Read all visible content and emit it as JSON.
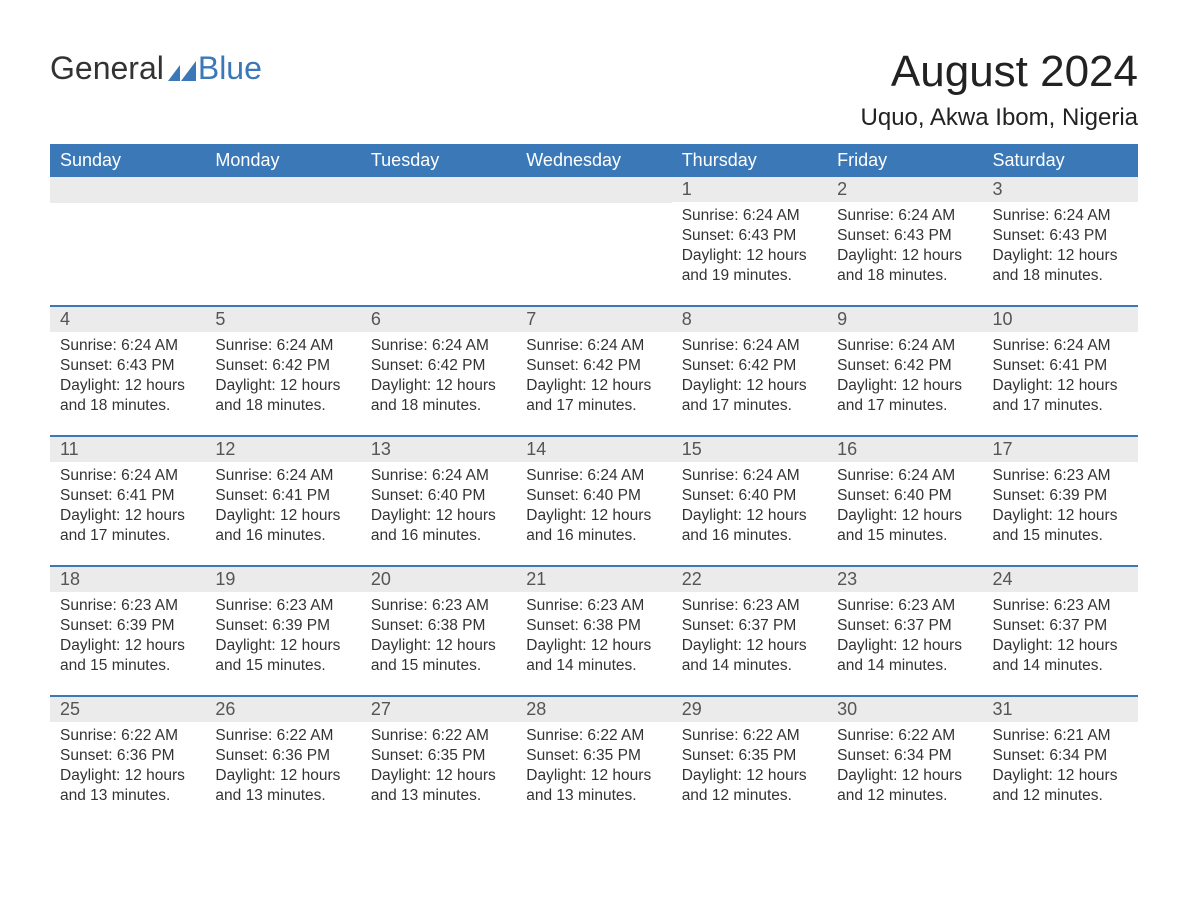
{
  "logo": {
    "text1": "General",
    "text2": "Blue"
  },
  "title": "August 2024",
  "location": "Uquo, Akwa Ibom, Nigeria",
  "colors": {
    "header_bg": "#3a78b8",
    "header_text": "#ffffff",
    "daynum_bg": "#ebebeb",
    "daynum_text": "#555555",
    "body_text": "#333333",
    "row_border": "#3a78b8",
    "page_bg": "#ffffff",
    "logo_blue": "#3a78b8"
  },
  "day_names": [
    "Sunday",
    "Monday",
    "Tuesday",
    "Wednesday",
    "Thursday",
    "Friday",
    "Saturday"
  ],
  "weeks": [
    [
      null,
      null,
      null,
      null,
      {
        "n": "1",
        "sunrise": "6:24 AM",
        "sunset": "6:43 PM",
        "daylight": "12 hours and 19 minutes."
      },
      {
        "n": "2",
        "sunrise": "6:24 AM",
        "sunset": "6:43 PM",
        "daylight": "12 hours and 18 minutes."
      },
      {
        "n": "3",
        "sunrise": "6:24 AM",
        "sunset": "6:43 PM",
        "daylight": "12 hours and 18 minutes."
      }
    ],
    [
      {
        "n": "4",
        "sunrise": "6:24 AM",
        "sunset": "6:43 PM",
        "daylight": "12 hours and 18 minutes."
      },
      {
        "n": "5",
        "sunrise": "6:24 AM",
        "sunset": "6:42 PM",
        "daylight": "12 hours and 18 minutes."
      },
      {
        "n": "6",
        "sunrise": "6:24 AM",
        "sunset": "6:42 PM",
        "daylight": "12 hours and 18 minutes."
      },
      {
        "n": "7",
        "sunrise": "6:24 AM",
        "sunset": "6:42 PM",
        "daylight": "12 hours and 17 minutes."
      },
      {
        "n": "8",
        "sunrise": "6:24 AM",
        "sunset": "6:42 PM",
        "daylight": "12 hours and 17 minutes."
      },
      {
        "n": "9",
        "sunrise": "6:24 AM",
        "sunset": "6:42 PM",
        "daylight": "12 hours and 17 minutes."
      },
      {
        "n": "10",
        "sunrise": "6:24 AM",
        "sunset": "6:41 PM",
        "daylight": "12 hours and 17 minutes."
      }
    ],
    [
      {
        "n": "11",
        "sunrise": "6:24 AM",
        "sunset": "6:41 PM",
        "daylight": "12 hours and 17 minutes."
      },
      {
        "n": "12",
        "sunrise": "6:24 AM",
        "sunset": "6:41 PM",
        "daylight": "12 hours and 16 minutes."
      },
      {
        "n": "13",
        "sunrise": "6:24 AM",
        "sunset": "6:40 PM",
        "daylight": "12 hours and 16 minutes."
      },
      {
        "n": "14",
        "sunrise": "6:24 AM",
        "sunset": "6:40 PM",
        "daylight": "12 hours and 16 minutes."
      },
      {
        "n": "15",
        "sunrise": "6:24 AM",
        "sunset": "6:40 PM",
        "daylight": "12 hours and 16 minutes."
      },
      {
        "n": "16",
        "sunrise": "6:24 AM",
        "sunset": "6:40 PM",
        "daylight": "12 hours and 15 minutes."
      },
      {
        "n": "17",
        "sunrise": "6:23 AM",
        "sunset": "6:39 PM",
        "daylight": "12 hours and 15 minutes."
      }
    ],
    [
      {
        "n": "18",
        "sunrise": "6:23 AM",
        "sunset": "6:39 PM",
        "daylight": "12 hours and 15 minutes."
      },
      {
        "n": "19",
        "sunrise": "6:23 AM",
        "sunset": "6:39 PM",
        "daylight": "12 hours and 15 minutes."
      },
      {
        "n": "20",
        "sunrise": "6:23 AM",
        "sunset": "6:38 PM",
        "daylight": "12 hours and 15 minutes."
      },
      {
        "n": "21",
        "sunrise": "6:23 AM",
        "sunset": "6:38 PM",
        "daylight": "12 hours and 14 minutes."
      },
      {
        "n": "22",
        "sunrise": "6:23 AM",
        "sunset": "6:37 PM",
        "daylight": "12 hours and 14 minutes."
      },
      {
        "n": "23",
        "sunrise": "6:23 AM",
        "sunset": "6:37 PM",
        "daylight": "12 hours and 14 minutes."
      },
      {
        "n": "24",
        "sunrise": "6:23 AM",
        "sunset": "6:37 PM",
        "daylight": "12 hours and 14 minutes."
      }
    ],
    [
      {
        "n": "25",
        "sunrise": "6:22 AM",
        "sunset": "6:36 PM",
        "daylight": "12 hours and 13 minutes."
      },
      {
        "n": "26",
        "sunrise": "6:22 AM",
        "sunset": "6:36 PM",
        "daylight": "12 hours and 13 minutes."
      },
      {
        "n": "27",
        "sunrise": "6:22 AM",
        "sunset": "6:35 PM",
        "daylight": "12 hours and 13 minutes."
      },
      {
        "n": "28",
        "sunrise": "6:22 AM",
        "sunset": "6:35 PM",
        "daylight": "12 hours and 13 minutes."
      },
      {
        "n": "29",
        "sunrise": "6:22 AM",
        "sunset": "6:35 PM",
        "daylight": "12 hours and 12 minutes."
      },
      {
        "n": "30",
        "sunrise": "6:22 AM",
        "sunset": "6:34 PM",
        "daylight": "12 hours and 12 minutes."
      },
      {
        "n": "31",
        "sunrise": "6:21 AM",
        "sunset": "6:34 PM",
        "daylight": "12 hours and 12 minutes."
      }
    ]
  ],
  "labels": {
    "sunrise": "Sunrise:",
    "sunset": "Sunset:",
    "daylight": "Daylight:"
  }
}
